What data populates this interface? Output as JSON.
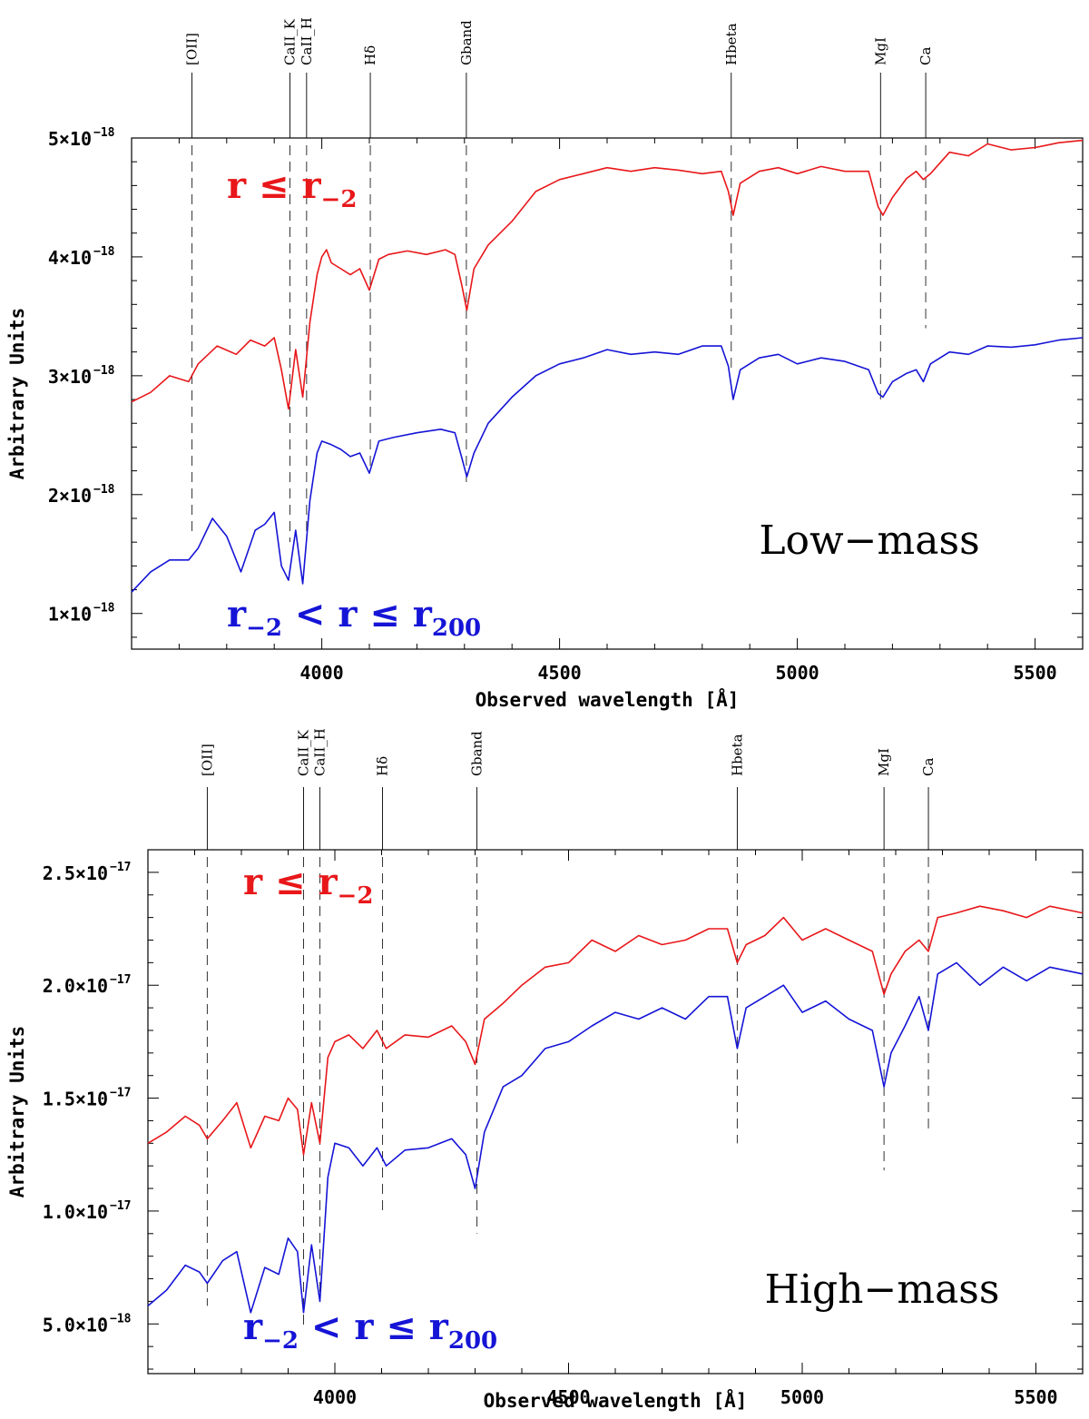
{
  "chart_data": [
    {
      "type": "line",
      "panel_label": "Low−mass",
      "xlabel": "Observed wavelength [Å]",
      "ylabel": "Arbitrary Units",
      "xlim": [
        3600,
        5600
      ],
      "ylim": [
        0.7,
        5.0
      ],
      "y_scale_exp": -18,
      "xticks": [
        4000,
        4500,
        5000,
        5500
      ],
      "xtick_labels": [
        "4000",
        "4500",
        "5000",
        "5500"
      ],
      "yticks": [
        1,
        2,
        3,
        4,
        5
      ],
      "ytick_labels": [
        "1×10",
        "2×10",
        "3×10",
        "4×10",
        "5×10"
      ],
      "ytick_exp": "−18",
      "lines": [
        {
          "name": "[OII]",
          "x": 3727,
          "dash_range": [
            1.65,
            4.0
          ]
        },
        {
          "name": "CaII_K",
          "x": 3933,
          "dash_range": [
            1.6,
            5.0
          ]
        },
        {
          "name": "CaII_H",
          "x": 3968,
          "dash_range": [
            1.6,
            5.0
          ]
        },
        {
          "name": "Hδ",
          "x": 4102,
          "dash_range": [
            2.2,
            5.0
          ]
        },
        {
          "name": "Gband",
          "x": 4304,
          "dash_range": [
            2.1,
            5.0
          ]
        },
        {
          "name": "Hbeta",
          "x": 4861,
          "dash_range": [
            3.05,
            5.0
          ]
        },
        {
          "name": "MgI",
          "x": 5175,
          "dash_range": [
            2.8,
            5.0
          ]
        },
        {
          "name": "Ca",
          "x": 5270,
          "dash_range": [
            3.4,
            5.0
          ]
        }
      ],
      "series": [
        {
          "color": "#e8171a",
          "x": [
            3600,
            3640,
            3680,
            3720,
            3740,
            3780,
            3820,
            3850,
            3880,
            3900,
            3915,
            3930,
            3945,
            3960,
            3975,
            3990,
            4000,
            4010,
            4020,
            4040,
            4060,
            4080,
            4100,
            4120,
            4140,
            4180,
            4220,
            4260,
            4280,
            4295,
            4305,
            4320,
            4350,
            4400,
            4450,
            4500,
            4550,
            4600,
            4650,
            4700,
            4750,
            4800,
            4840,
            4855,
            4865,
            4880,
            4920,
            4960,
            5000,
            5050,
            5100,
            5150,
            5170,
            5180,
            5200,
            5230,
            5250,
            5265,
            5280,
            5320,
            5360,
            5400,
            5450,
            5500,
            5550,
            5600
          ],
          "y": [
            2.78,
            2.86,
            3.0,
            2.95,
            3.1,
            3.25,
            3.18,
            3.3,
            3.25,
            3.32,
            3.05,
            2.72,
            3.22,
            2.82,
            3.45,
            3.85,
            4.0,
            4.06,
            3.95,
            3.9,
            3.85,
            3.9,
            3.72,
            3.98,
            4.02,
            4.05,
            4.02,
            4.06,
            4.02,
            3.75,
            3.55,
            3.9,
            4.1,
            4.3,
            4.55,
            4.65,
            4.7,
            4.75,
            4.72,
            4.75,
            4.73,
            4.7,
            4.72,
            4.55,
            4.35,
            4.62,
            4.72,
            4.75,
            4.7,
            4.76,
            4.72,
            4.72,
            4.42,
            4.35,
            4.5,
            4.66,
            4.72,
            4.65,
            4.7,
            4.88,
            4.85,
            4.95,
            4.9,
            4.92,
            4.96,
            4.98
          ]
        },
        {
          "color": "#1514d6",
          "x": [
            3600,
            3640,
            3680,
            3720,
            3740,
            3770,
            3800,
            3830,
            3860,
            3880,
            3900,
            3915,
            3930,
            3945,
            3960,
            3975,
            3990,
            4000,
            4020,
            4040,
            4060,
            4080,
            4100,
            4120,
            4150,
            4200,
            4250,
            4280,
            4295,
            4305,
            4320,
            4350,
            4400,
            4450,
            4500,
            4550,
            4600,
            4650,
            4700,
            4750,
            4800,
            4840,
            4855,
            4865,
            4880,
            4920,
            4960,
            5000,
            5050,
            5100,
            5150,
            5170,
            5180,
            5200,
            5230,
            5250,
            5265,
            5280,
            5320,
            5360,
            5400,
            5450,
            5500,
            5550,
            5600
          ],
          "y": [
            1.18,
            1.35,
            1.45,
            1.45,
            1.55,
            1.8,
            1.65,
            1.35,
            1.7,
            1.75,
            1.85,
            1.4,
            1.28,
            1.7,
            1.25,
            1.95,
            2.35,
            2.45,
            2.42,
            2.38,
            2.32,
            2.35,
            2.18,
            2.45,
            2.48,
            2.52,
            2.55,
            2.52,
            2.3,
            2.15,
            2.35,
            2.6,
            2.82,
            3.0,
            3.1,
            3.15,
            3.22,
            3.18,
            3.2,
            3.18,
            3.25,
            3.25,
            3.08,
            2.8,
            3.05,
            3.15,
            3.18,
            3.1,
            3.15,
            3.12,
            3.05,
            2.85,
            2.82,
            2.95,
            3.02,
            3.05,
            2.95,
            3.1,
            3.2,
            3.18,
            3.25,
            3.24,
            3.26,
            3.3,
            3.32
          ]
        }
      ]
    },
    {
      "type": "line",
      "panel_label": "High−mass",
      "xlabel": "Observed wavelength [Å]",
      "ylabel": "Arbitrary Units",
      "xlim": [
        3600,
        5600
      ],
      "ylim": [
        0.28,
        2.6
      ],
      "y_scale_exp": -17,
      "xticks": [
        4000,
        4500,
        5000,
        5500
      ],
      "xtick_labels": [
        "4000",
        "4500",
        "5000",
        "5500"
      ],
      "yticks": [
        0.5,
        1.0,
        1.5,
        2.0,
        2.5
      ],
      "ytick_labels": [
        "5.0×10",
        "1.0×10",
        "1.5×10",
        "2.0×10",
        "2.5×10"
      ],
      "ytick_exp": [
        "−18",
        "−17",
        "−17",
        "−17",
        "−17"
      ],
      "lines": [
        {
          "name": "[OII]",
          "x": 3727,
          "dash_range": [
            0.58,
            2.6
          ]
        },
        {
          "name": "CaII_K",
          "x": 3933,
          "dash_range": [
            0.48,
            2.6
          ]
        },
        {
          "name": "CaII_H",
          "x": 3968,
          "dash_range": [
            0.62,
            2.6
          ]
        },
        {
          "name": "Hδ",
          "x": 4102,
          "dash_range": [
            1.0,
            2.6
          ]
        },
        {
          "name": "Gband",
          "x": 4304,
          "dash_range": [
            0.9,
            2.6
          ]
        },
        {
          "name": "Hbeta",
          "x": 4861,
          "dash_range": [
            1.3,
            2.6
          ]
        },
        {
          "name": "MgI",
          "x": 5175,
          "dash_range": [
            1.18,
            2.6
          ]
        },
        {
          "name": "Ca",
          "x": 5270,
          "dash_range": [
            1.35,
            2.6
          ]
        }
      ],
      "series": [
        {
          "color": "#e8171a",
          "x": [
            3600,
            3640,
            3680,
            3710,
            3727,
            3760,
            3790,
            3820,
            3850,
            3880,
            3900,
            3920,
            3933,
            3950,
            3968,
            3985,
            4000,
            4030,
            4060,
            4090,
            4110,
            4150,
            4200,
            4250,
            4280,
            4300,
            4320,
            4360,
            4400,
            4450,
            4500,
            4550,
            4600,
            4650,
            4700,
            4750,
            4800,
            4840,
            4861,
            4880,
            4920,
            4960,
            5000,
            5050,
            5100,
            5150,
            5175,
            5190,
            5220,
            5250,
            5270,
            5290,
            5330,
            5380,
            5430,
            5480,
            5530,
            5600
          ],
          "y": [
            1.3,
            1.35,
            1.42,
            1.38,
            1.32,
            1.4,
            1.48,
            1.28,
            1.42,
            1.4,
            1.5,
            1.45,
            1.25,
            1.48,
            1.3,
            1.68,
            1.75,
            1.78,
            1.72,
            1.8,
            1.72,
            1.78,
            1.77,
            1.82,
            1.75,
            1.65,
            1.85,
            1.92,
            2.0,
            2.08,
            2.1,
            2.2,
            2.15,
            2.22,
            2.18,
            2.2,
            2.25,
            2.25,
            2.1,
            2.18,
            2.22,
            2.3,
            2.2,
            2.25,
            2.2,
            2.15,
            1.96,
            2.05,
            2.15,
            2.2,
            2.15,
            2.3,
            2.32,
            2.35,
            2.33,
            2.3,
            2.35,
            2.32
          ]
        },
        {
          "color": "#1514d6",
          "x": [
            3600,
            3640,
            3680,
            3710,
            3727,
            3760,
            3790,
            3820,
            3850,
            3880,
            3900,
            3920,
            3933,
            3950,
            3968,
            3985,
            4000,
            4030,
            4060,
            4090,
            4110,
            4150,
            4200,
            4250,
            4280,
            4300,
            4320,
            4360,
            4400,
            4450,
            4500,
            4550,
            4600,
            4650,
            4700,
            4750,
            4800,
            4840,
            4861,
            4880,
            4920,
            4960,
            5000,
            5050,
            5100,
            5150,
            5175,
            5190,
            5220,
            5250,
            5270,
            5290,
            5330,
            5380,
            5430,
            5480,
            5530,
            5600
          ],
          "y": [
            0.58,
            0.65,
            0.76,
            0.73,
            0.68,
            0.78,
            0.82,
            0.55,
            0.75,
            0.72,
            0.88,
            0.82,
            0.55,
            0.85,
            0.6,
            1.15,
            1.3,
            1.28,
            1.2,
            1.28,
            1.2,
            1.27,
            1.28,
            1.32,
            1.25,
            1.1,
            1.35,
            1.55,
            1.6,
            1.72,
            1.75,
            1.82,
            1.88,
            1.85,
            1.9,
            1.85,
            1.95,
            1.95,
            1.72,
            1.9,
            1.95,
            2.0,
            1.88,
            1.93,
            1.85,
            1.8,
            1.55,
            1.7,
            1.82,
            1.95,
            1.8,
            2.05,
            2.1,
            2.0,
            2.08,
            2.02,
            2.08,
            2.05
          ]
        }
      ]
    }
  ],
  "annotations": {
    "inner_top": {
      "r": "r",
      "le": "≤",
      "r2": "r",
      "sub2": "−2"
    },
    "outer_bottom": {
      "r2": "r",
      "sub2": "−2",
      "lt": "<",
      "r": "r",
      "le": "≤",
      "r200": "r",
      "sub200": "200"
    }
  }
}
